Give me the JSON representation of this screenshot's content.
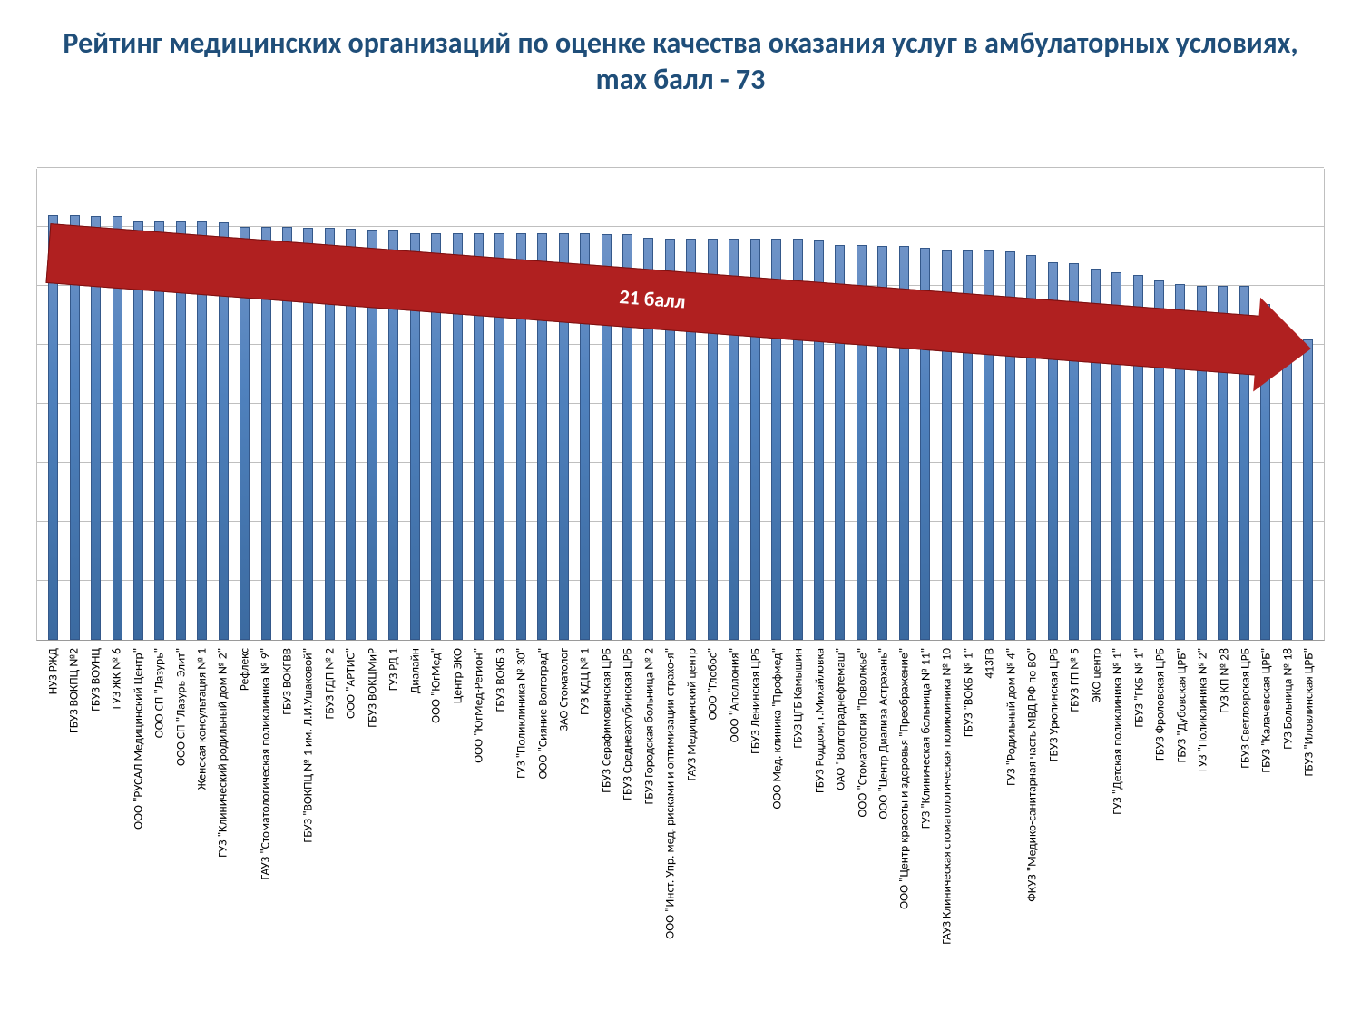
{
  "title": "Рейтинг медицинских организаций по оценке качества оказания услуг в амбулаторных условиях, max балл - 73",
  "arrow_label": "21 балл",
  "chart": {
    "type": "bar",
    "ylim": [
      0,
      80
    ],
    "ytick_step": 10,
    "background_color": "#ffffff",
    "grid_color": "#bfbfbf",
    "bar_fill": "#4f81bd",
    "bar_border": "#34588a",
    "title_color": "#1f4e79",
    "title_fontsize": 32,
    "label_fontsize": 13.5,
    "value_fontsize": 15,
    "arrow_color": "#b02020",
    "arrow_text_color": "#ffffff",
    "bars": [
      {
        "label": "НУЗ РЖД",
        "value": 72,
        "value_text": "72"
      },
      {
        "label": "ГБУЗ ВОКПЦ №2",
        "value": 72,
        "value_text": "72"
      },
      {
        "label": "ГБУЗ ВОУНЦ",
        "value": 71.8,
        "value_text": "71,8"
      },
      {
        "label": "ГУЗ ЖК № 6",
        "value": 71.8,
        "value_text": "71,8"
      },
      {
        "label": "ООО \"РУСАЛ Медицинский Центр\"",
        "value": 71,
        "value_text": "71"
      },
      {
        "label": "ООО СП \"Лазурь\"",
        "value": 71,
        "value_text": "71"
      },
      {
        "label": "ООО СП \"Лазурь-Элит\"",
        "value": 71,
        "value_text": "71"
      },
      {
        "label": "Женская консультация № 1",
        "value": 71,
        "value_text": "71"
      },
      {
        "label": "ГУЗ \"Клинический родильный дом № 2\"",
        "value": 70.8,
        "value_text": "70,8"
      },
      {
        "label": "Рефлекс",
        "value": 70,
        "value_text": "70"
      },
      {
        "label": "ГАУЗ \"Стоматологическая поликлиника № 9\"",
        "value": 70,
        "value_text": "70"
      },
      {
        "label": "ГБУЗ ВОКГВВ",
        "value": 70,
        "value_text": "70"
      },
      {
        "label": "ГБУЗ \"ВОКПЦ № 1 им. Л.И.Ушаковой\"",
        "value": 69.8,
        "value_text": "69,8"
      },
      {
        "label": "ГБУЗ ГДП № 2",
        "value": 69.8,
        "value_text": "69,8"
      },
      {
        "label": "ООО \"АРТИС\"",
        "value": 69.7,
        "value_text": "69,7"
      },
      {
        "label": "ГБУЗ ВОКЦМиР",
        "value": 69.6,
        "value_text": "69,6"
      },
      {
        "label": "ГУЗ РД 1",
        "value": 69.5,
        "value_text": "69,5"
      },
      {
        "label": "Диалайн",
        "value": 69,
        "value_text": "69"
      },
      {
        "label": "ООО \"ЮгМед\"",
        "value": 69,
        "value_text": "69"
      },
      {
        "label": "Центр ЭКО",
        "value": 69,
        "value_text": "69"
      },
      {
        "label": "ООО \"ЮгМед-Регион\"",
        "value": 69,
        "value_text": "69"
      },
      {
        "label": "ГБУЗ ВОКБ 3",
        "value": 69,
        "value_text": "69"
      },
      {
        "label": "ГУЗ \"Поликлиника № 30\"",
        "value": 69,
        "value_text": "69"
      },
      {
        "label": "ООО \"Сияние Волгоград\"",
        "value": 69,
        "value_text": "69"
      },
      {
        "label": "ЗАО Стоматолог",
        "value": 69,
        "value_text": "69"
      },
      {
        "label": "ГУЗ КДЦ № 1",
        "value": 69,
        "value_text": "69"
      },
      {
        "label": "ГБУЗ Серафимовичская ЦРБ",
        "value": 68.8,
        "value_text": "68,8"
      },
      {
        "label": "ГБУЗ Среднеахтубинская ЦРБ",
        "value": 68.8,
        "value_text": "68,8"
      },
      {
        "label": "ГБУЗ Городская больница № 2",
        "value": 68.2,
        "value_text": "68,2"
      },
      {
        "label": "ООО \"Инст. Упр. мед. рисками и оптимизации страхо-я\"",
        "value": 68,
        "value_text": "68"
      },
      {
        "label": "ГАУЗ Медицинский центр",
        "value": 68,
        "value_text": "68"
      },
      {
        "label": "ООО \"Глобос\"",
        "value": 68,
        "value_text": "68"
      },
      {
        "label": "ООО \"Аполлония\"",
        "value": 68,
        "value_text": "68"
      },
      {
        "label": "ГБУЗ Ленинская ЦРБ",
        "value": 68,
        "value_text": "68"
      },
      {
        "label": "ООО Мед. клиника \"Профмед\"",
        "value": 68,
        "value_text": "68"
      },
      {
        "label": "ГБУЗ ЦГБ Камышин",
        "value": 68,
        "value_text": "68"
      },
      {
        "label": "ГБУЗ Роддом, г.Михайловка",
        "value": 67.8,
        "value_text": "67,8"
      },
      {
        "label": "ОАО \"Волгограднефтемаш\"",
        "value": 67,
        "value_text": "67"
      },
      {
        "label": "ООО \"Стоматология \"Поволжье\"",
        "value": 67,
        "value_text": "67"
      },
      {
        "label": "ООО \"Центр Диализа Астрахань\"",
        "value": 66.8,
        "value_text": "66,8"
      },
      {
        "label": "ООО \"Центр красоты и здоровья \"Преображение\"",
        "value": 66.7,
        "value_text": "66,7"
      },
      {
        "label": "ГУЗ \"Клиническая больница № 11\"",
        "value": 66.5,
        "value_text": "66,5"
      },
      {
        "label": "ГАУЗ Клиническая стоматологическая поликлиника № 10",
        "value": 66,
        "value_text": "66"
      },
      {
        "label": "ГБУЗ \"ВОКБ № 1\"",
        "value": 66,
        "value_text": "66"
      },
      {
        "label": "413ГВ",
        "value": 66,
        "value_text": "66"
      },
      {
        "label": "ГУЗ \"Родильный дом № 4\"",
        "value": 65.8,
        "value_text": "65,8"
      },
      {
        "label": "ФКУЗ \"Медико-санитарная часть МВД РФ по ВО\"",
        "value": 65.2,
        "value_text": "65,2"
      },
      {
        "label": "ГБУЗ Урюпинская ЦРБ",
        "value": 64,
        "value_text": "64"
      },
      {
        "label": "ГБУЗ ГП № 5",
        "value": 63.8,
        "value_text": "63,8"
      },
      {
        "label": "ЭКО центр",
        "value": 63,
        "value_text": "63"
      },
      {
        "label": "ГУЗ \"Детская поликлиника № 1\"",
        "value": 62.3,
        "value_text": "62,3"
      },
      {
        "label": "ГБУЗ \"ГКБ № 1\"",
        "value": 61.8,
        "value_text": "61,8"
      },
      {
        "label": "ГБУЗ Фроловская ЦРБ",
        "value": 61,
        "value_text": "61"
      },
      {
        "label": "ГБУЗ \"Дубовская ЦРБ\"",
        "value": 60.3,
        "value_text": "60,3"
      },
      {
        "label": "ГУЗ \"Поликлиника № 2\"",
        "value": 60,
        "value_text": "60"
      },
      {
        "label": "ГУЗ КП № 28",
        "value": 60,
        "value_text": "60"
      },
      {
        "label": "ГБУЗ Светлоярская ЦРБ",
        "value": 60,
        "value_text": "60"
      },
      {
        "label": "ГБУЗ \"Калачевская ЦРБ\"",
        "value": 57,
        "value_text": "57"
      },
      {
        "label": "ГУЗ Больница № 18",
        "value": 51.5,
        "value_text": "51,5"
      },
      {
        "label": "ГБУЗ \"Иловлинская ЦРБ\"",
        "value": 51,
        "value_text": "51"
      }
    ]
  }
}
